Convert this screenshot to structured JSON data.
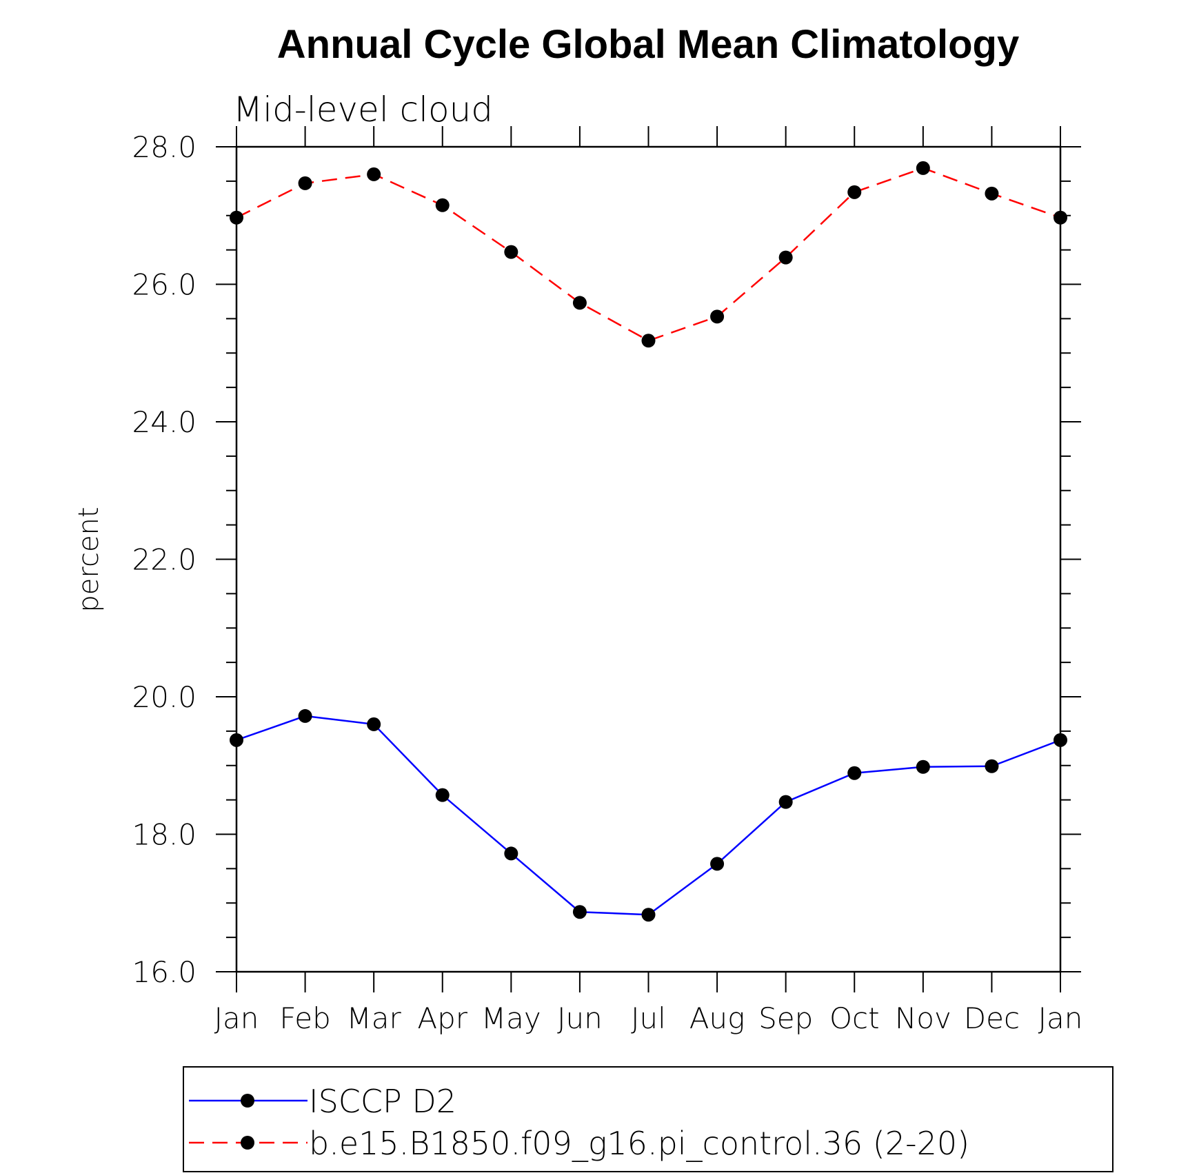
{
  "chart_data": {
    "type": "line",
    "title": "Annual Cycle Global Mean Climatology",
    "subtitle": "Mid-level cloud",
    "ylabel": "percent",
    "xlabel": "",
    "categories": [
      "Jan",
      "Feb",
      "Mar",
      "Apr",
      "May",
      "Jun",
      "Jul",
      "Aug",
      "Sep",
      "Oct",
      "Nov",
      "Dec",
      "Jan"
    ],
    "ylim": [
      16.0,
      28.0
    ],
    "yticks": [
      "16.0",
      "18.0",
      "20.0",
      "22.0",
      "24.0",
      "26.0",
      "28.0"
    ],
    "grid": false,
    "legend_position": "bottom",
    "series": [
      {
        "name": "ISCCP D2",
        "color": "#0000ff",
        "line_style": "solid",
        "marker": "filled-circle",
        "values": [
          19.37,
          19.72,
          19.6,
          18.57,
          17.72,
          16.87,
          16.83,
          17.57,
          18.47,
          18.89,
          18.98,
          18.99,
          19.37
        ]
      },
      {
        "name": "b.e15.B1850.f09_g16.pi_control.36 (2-20)",
        "color": "#ff0000",
        "line_style": "dashed",
        "marker": "filled-circle",
        "values": [
          26.97,
          27.47,
          27.6,
          27.15,
          26.47,
          25.73,
          25.18,
          25.53,
          26.39,
          27.34,
          27.69,
          27.32,
          26.97
        ]
      }
    ]
  }
}
